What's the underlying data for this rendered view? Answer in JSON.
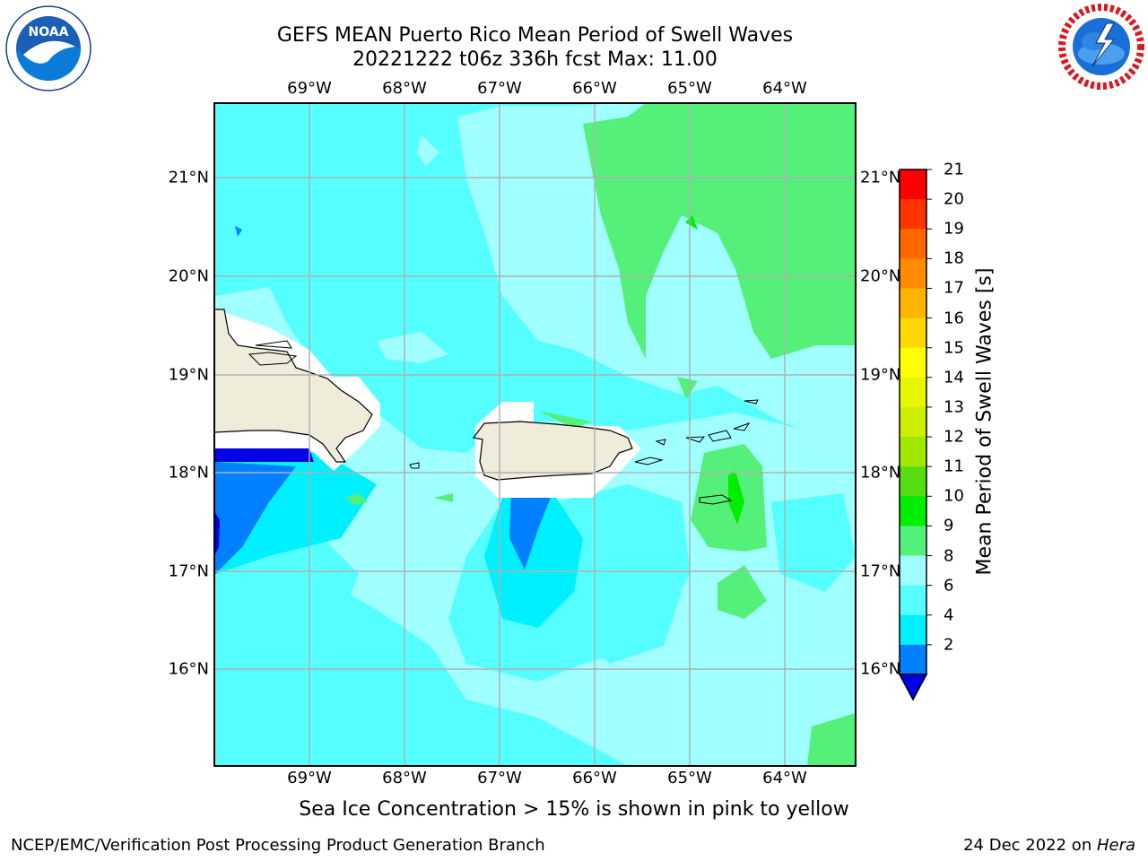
{
  "title_line1": "GEFS MEAN Puerto Rico Mean Period of Swell Waves",
  "title_line2": "20221222 t06z 336h fcst   Max: 11.00",
  "lon_labels": [
    "69°W",
    "68°W",
    "67°W",
    "66°W",
    "65°W",
    "64°W"
  ],
  "lat_labels": [
    "21°N",
    "20°N",
    "19°N",
    "18°N",
    "17°N",
    "16°N"
  ],
  "colorbar": {
    "label": "Mean Period of Swell Waves [s]",
    "ticks": [
      "21",
      "20",
      "19",
      "18",
      "17",
      "16",
      "15",
      "14",
      "13",
      "12",
      "11",
      "10",
      "9",
      "8",
      "6",
      "4",
      "2"
    ],
    "colors": [
      "#fe0000",
      "#ff3300",
      "#ff6600",
      "#ff8c00",
      "#ffb400",
      "#ffd800",
      "#ffff00",
      "#e6f700",
      "#ccf000",
      "#a0e800",
      "#55dd11",
      "#00ee00",
      "#55f07a",
      "#a0ffff",
      "#55ffff",
      "#00f0ff",
      "#0080ff"
    ],
    "extend_color": "#0000e6"
  },
  "note": "Sea Ice Concentration > 15% is shown in pink to yellow",
  "footer_left": "NCEP/EMC/Verification Post Processing Product Generation Branch",
  "footer_right_prefix": "24 Dec 2022 on ",
  "footer_right_host": "Hera",
  "logos": {
    "left": "noaa-logo",
    "right": "national-weather-service-logo"
  }
}
